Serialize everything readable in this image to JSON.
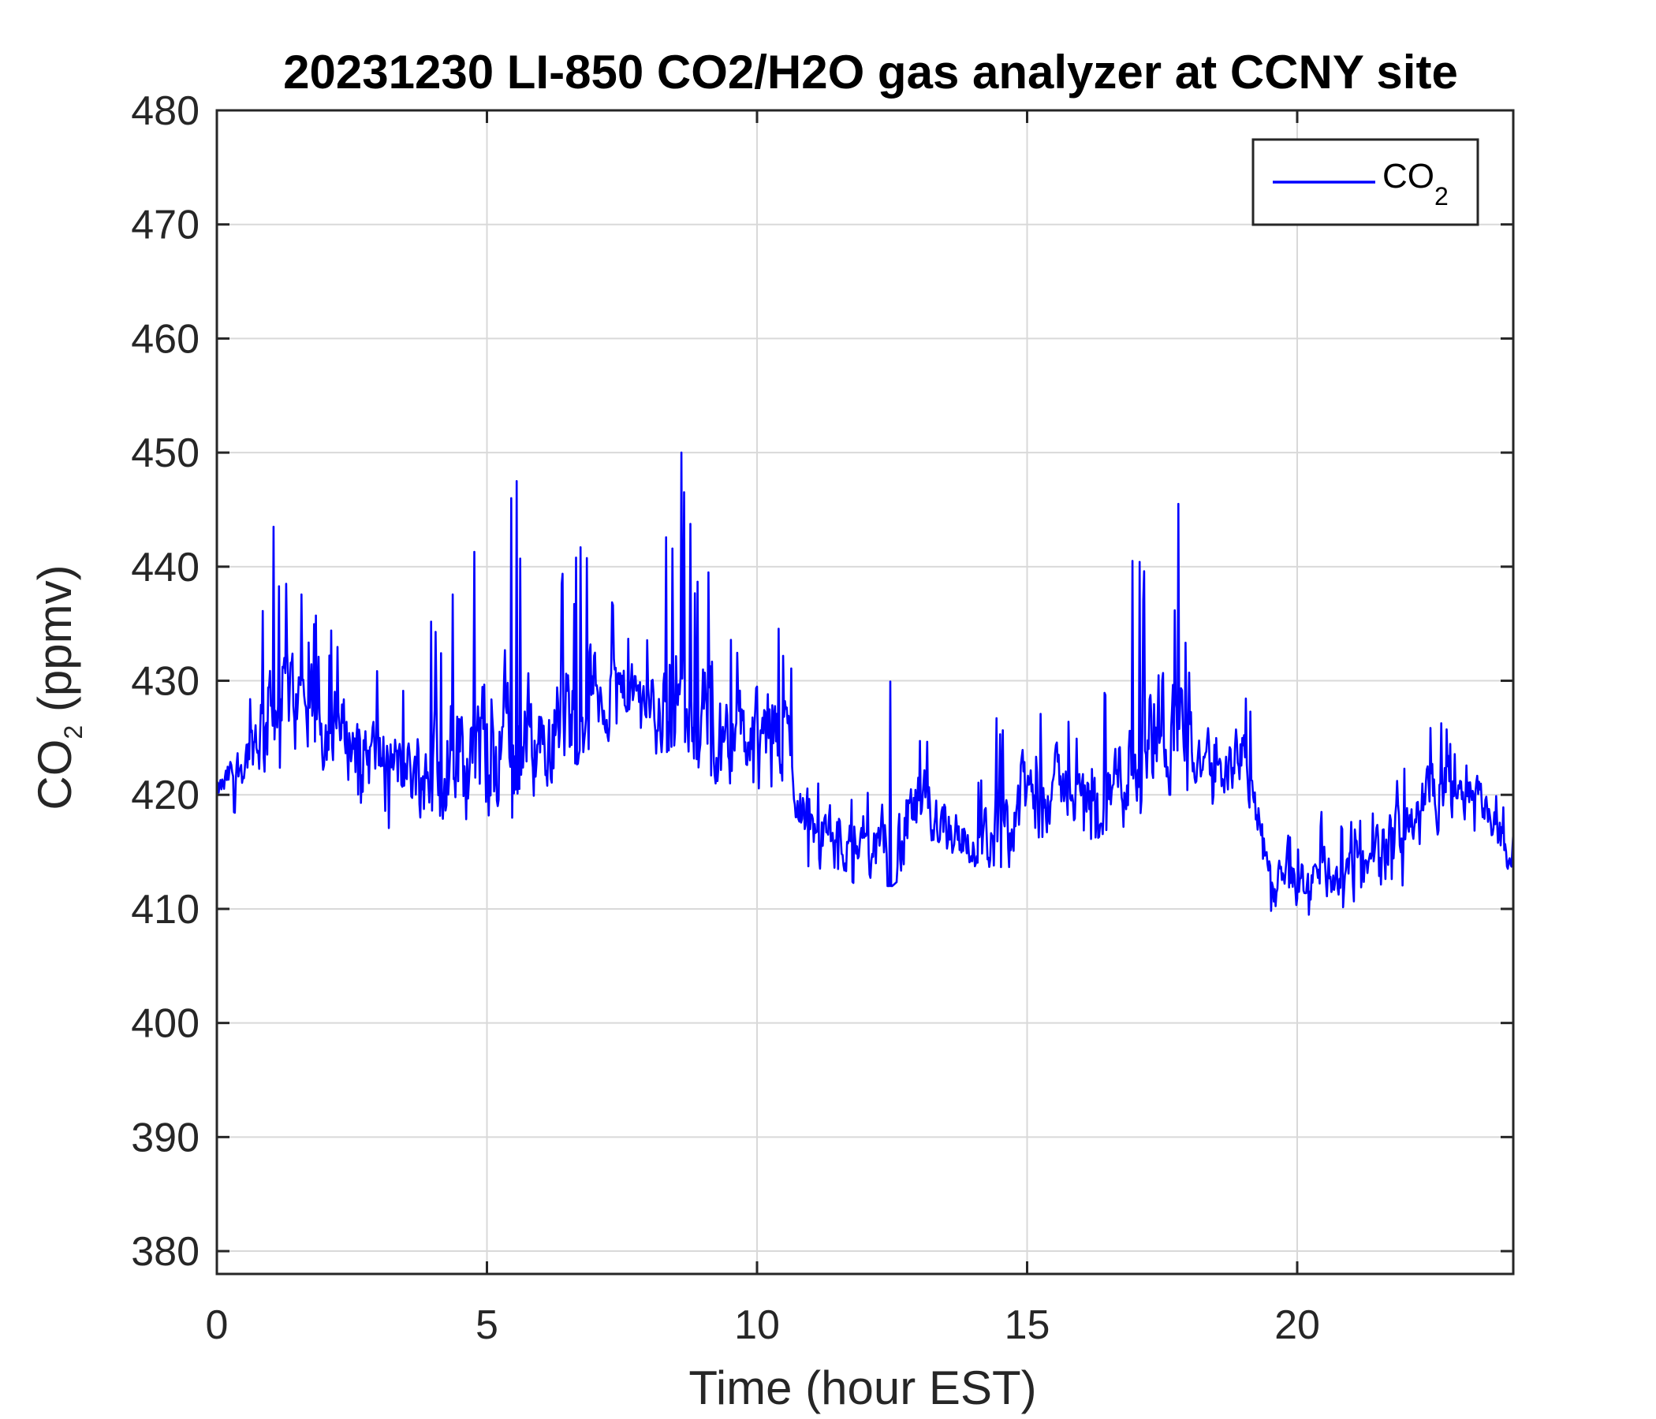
{
  "chart_data": {
    "type": "line",
    "title": "20231230 LI-850 CO2/H2O gas analyzer at CCNY site",
    "xlabel": "Time (hour EST)",
    "ylabel": {
      "main": "CO",
      "sub": "2",
      "rest": " (ppmv)"
    },
    "xlim": [
      0,
      24
    ],
    "ylim": [
      378,
      480
    ],
    "xticks": [
      0,
      5,
      10,
      15,
      20
    ],
    "xtick_labels": [
      "0",
      "5",
      "10",
      "15",
      "20"
    ],
    "yticks": [
      380,
      390,
      400,
      410,
      420,
      430,
      440,
      450,
      460,
      470,
      480
    ],
    "ytick_labels": [
      "380",
      "390",
      "400",
      "410",
      "420",
      "430",
      "440",
      "450",
      "460",
      "470",
      "480"
    ],
    "grid": true,
    "legend": {
      "placement": "top-right",
      "entries": [
        {
          "main": "CO",
          "sub": "2"
        }
      ]
    },
    "series": [
      {
        "name": "CO2",
        "color": "#0000ff",
        "x": [
          0,
          0.5,
          1,
          1.5,
          2,
          2.5,
          3,
          3.5,
          4,
          4.5,
          5,
          5.5,
          6,
          6.5,
          7,
          7.5,
          8,
          8.5,
          9,
          9.5,
          10,
          10.5,
          11,
          11.5,
          12,
          12.5,
          13,
          13.5,
          14,
          14.5,
          15,
          15.5,
          16,
          16.5,
          17,
          17.5,
          18,
          18.5,
          19,
          19.5,
          20,
          20.5,
          21,
          21.5,
          22,
          22.5,
          23,
          23.5,
          24
        ],
        "y": [
          420,
          423,
          428,
          428,
          426,
          425,
          423,
          422,
          423,
          424,
          424,
          425,
          425,
          427,
          429,
          429,
          428,
          429,
          427,
          425,
          425,
          425,
          417,
          416,
          415,
          414,
          419,
          418,
          415,
          417,
          420,
          421,
          420,
          420,
          424,
          427,
          425,
          421,
          424,
          412,
          412,
          413,
          413,
          414,
          418,
          420,
          421,
          419,
          414
        ],
        "envelope_low": [
          417,
          417,
          421,
          420,
          420,
          419,
          417,
          417,
          417,
          417,
          418,
          418,
          419,
          422,
          424,
          425,
          424,
          422,
          421,
          421,
          420,
          420,
          413,
          412,
          412,
          412,
          414,
          414,
          413,
          413,
          415,
          416,
          416,
          416,
          418,
          420,
          420,
          418,
          420,
          409,
          409,
          410,
          410,
          410,
          412,
          416,
          416,
          414,
          409
        ],
        "envelope_high": [
          421,
          426,
          443,
          438,
          435,
          434,
          431,
          430,
          436,
          441,
          443,
          447,
          436,
          443,
          441,
          436,
          434,
          450,
          440,
          437,
          436,
          436,
          423,
          421,
          419,
          431,
          425,
          425,
          420,
          429,
          431,
          427,
          426,
          430,
          440,
          445,
          434,
          425,
          431,
          418,
          417,
          419,
          419,
          422,
          424,
          427,
          425,
          420,
          420
        ],
        "peaks": [
          [
            1.05,
            443.5
          ],
          [
            5.55,
            447.5
          ],
          [
            8.6,
            450
          ],
          [
            17.8,
            445.5
          ],
          [
            16.95,
            440.5
          ],
          [
            9.1,
            439.5
          ]
        ]
      }
    ]
  }
}
